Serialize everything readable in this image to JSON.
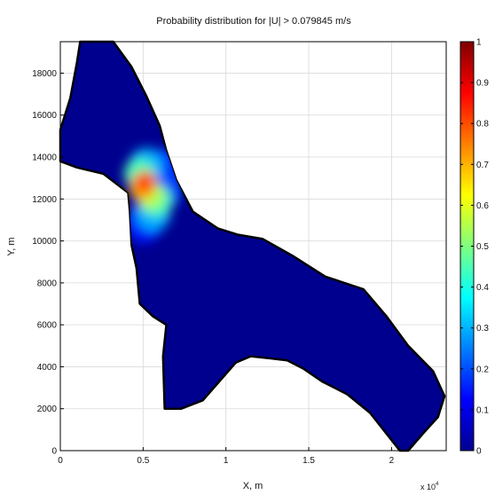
{
  "chart_data": {
    "type": "heatmap",
    "title": "Probability distribution for |U| > 0.079845 m/s",
    "xlabel": "X, m",
    "ylabel": "Y, m",
    "x_exponent_label": "x 10",
    "x_exponent_power": "4",
    "xlim": [
      0,
      23300
    ],
    "ylim": [
      0,
      19500
    ],
    "x_ticks": [
      0,
      5000,
      10000,
      15000,
      20000
    ],
    "x_tick_labels": [
      "0",
      "0.5",
      "1",
      "1.5",
      "2"
    ],
    "y_ticks": [
      0,
      2000,
      4000,
      6000,
      8000,
      10000,
      12000,
      14000,
      16000,
      18000
    ],
    "y_tick_labels": [
      "0",
      "2000",
      "4000",
      "6000",
      "8000",
      "10000",
      "12000",
      "14000",
      "16000",
      "18000"
    ],
    "grid": true,
    "colorbar": {
      "colormap": "jet",
      "range": [
        0,
        1
      ],
      "ticks": [
        0,
        0.1,
        0.2,
        0.3,
        0.4,
        0.5,
        0.6,
        0.7,
        0.8,
        0.9,
        1
      ],
      "tick_labels": [
        "0",
        "0.1",
        "0.2",
        "0.3",
        "0.4",
        "0.5",
        "0.6",
        "0.7",
        "0.8",
        "0.9",
        "1"
      ]
    },
    "domain_outline": [
      [
        1200,
        19500
      ],
      [
        3200,
        19500
      ],
      [
        4300,
        18300
      ],
      [
        5200,
        16900
      ],
      [
        6000,
        15500
      ],
      [
        6400,
        14300
      ],
      [
        7000,
        12900
      ],
      [
        8000,
        11400
      ],
      [
        9500,
        10600
      ],
      [
        10700,
        10300
      ],
      [
        12200,
        10100
      ],
      [
        14000,
        9300
      ],
      [
        16000,
        8300
      ],
      [
        18300,
        7700
      ],
      [
        19700,
        6400
      ],
      [
        21000,
        5000
      ],
      [
        22500,
        3800
      ],
      [
        23200,
        2600
      ],
      [
        22800,
        1600
      ],
      [
        22000,
        900
      ],
      [
        21000,
        0
      ],
      [
        20500,
        0
      ],
      [
        19800,
        700
      ],
      [
        18700,
        1800
      ],
      [
        17300,
        2700
      ],
      [
        15800,
        3300
      ],
      [
        14700,
        3900
      ],
      [
        13700,
        4300
      ],
      [
        12700,
        4400
      ],
      [
        11500,
        4500
      ],
      [
        10600,
        4200
      ],
      [
        9600,
        3300
      ],
      [
        8600,
        2400
      ],
      [
        7300,
        2000
      ],
      [
        6300,
        2000
      ],
      [
        6200,
        4500
      ],
      [
        6400,
        6000
      ],
      [
        5600,
        6400
      ],
      [
        4800,
        7000
      ],
      [
        4600,
        8700
      ],
      [
        4300,
        9800
      ],
      [
        4200,
        11400
      ],
      [
        4100,
        12300
      ],
      [
        2600,
        13200
      ],
      [
        1000,
        13500
      ],
      [
        0,
        13800
      ],
      [
        0,
        15300
      ],
      [
        600,
        16800
      ],
      [
        1000,
        18500
      ]
    ],
    "values": [
      {
        "x": 5100,
        "y": 12800,
        "value": 0.8
      },
      {
        "x": 4900,
        "y": 12500,
        "value": 0.7
      },
      {
        "x": 5400,
        "y": 12200,
        "value": 0.55
      },
      {
        "x": 5800,
        "y": 11900,
        "value": 0.45
      },
      {
        "x": 4800,
        "y": 13200,
        "value": 0.45
      },
      {
        "x": 5200,
        "y": 13600,
        "value": 0.3
      },
      {
        "x": 5600,
        "y": 11300,
        "value": 0.3
      },
      {
        "x": 6200,
        "y": 12400,
        "value": 0.2
      },
      {
        "x": 5000,
        "y": 10800,
        "value": 0.15
      },
      {
        "x": 6400,
        "y": 13500,
        "value": 0.15
      }
    ]
  }
}
